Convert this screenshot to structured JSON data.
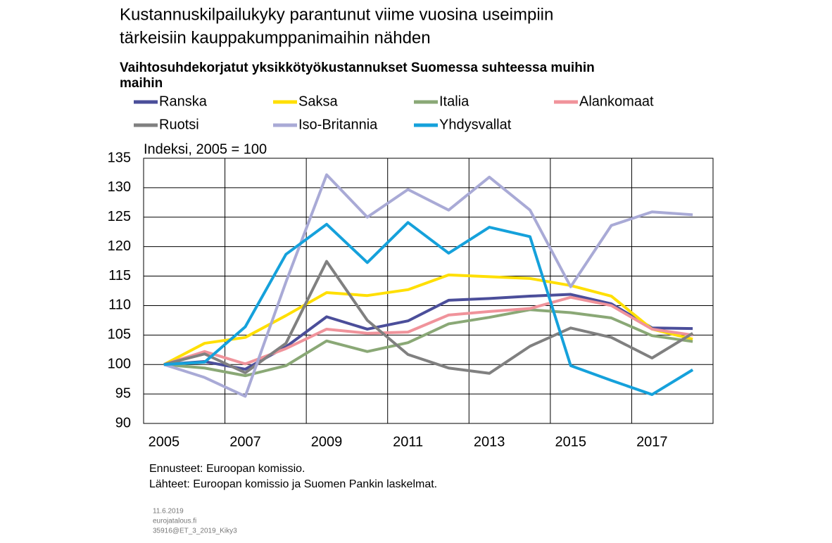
{
  "chart_data": {
    "type": "line",
    "title": [
      "Kustannuskilpailukyky parantunut viime vuosina useimpiin",
      "tärkeisiin kauppakumppanimaihin nähden"
    ],
    "subtitle": [
      "Vaihtosuhdekorjatut yksikkötyökustannukset Suomessa suhteessa muihin",
      "maihin"
    ],
    "y_label": "Indeksi, 2005 = 100",
    "categories": [
      "2005",
      null,
      "2007",
      null,
      "2009",
      null,
      "2011",
      null,
      "2013",
      null,
      "2015",
      null,
      "2017",
      null
    ],
    "ylim": [
      90,
      135
    ],
    "yticks": [
      90,
      95,
      100,
      105,
      110,
      115,
      120,
      125,
      130,
      135
    ],
    "grid": true,
    "series": [
      {
        "name": "Ranska",
        "color": "#4b4e9a",
        "values": [
          100,
          100.5,
          99.2,
          103,
          108.1,
          106,
          107.4,
          110.9,
          111.2,
          111.6,
          111.9,
          110.3,
          106.2,
          106.1
        ]
      },
      {
        "name": "Saksa",
        "color": "#ffdf00",
        "values": [
          100,
          103.6,
          104.6,
          108.3,
          112.2,
          111.7,
          112.7,
          115.2,
          114.9,
          114.6,
          113.4,
          111.6,
          106,
          104.3
        ]
      },
      {
        "name": "Italia",
        "color": "#8aa876",
        "values": [
          100,
          99.4,
          98.1,
          99.8,
          104,
          102.2,
          103.7,
          106.9,
          108,
          109.3,
          108.8,
          107.9,
          104.9,
          103.9
        ]
      },
      {
        "name": "Alankomaat",
        "color": "#f0939b",
        "values": [
          100,
          102.2,
          100.1,
          102.7,
          106,
          105.3,
          105.5,
          108.4,
          109,
          109.5,
          111.4,
          110,
          106,
          105
        ]
      },
      {
        "name": "Ruotsi",
        "color": "#808080",
        "values": [
          100,
          101.8,
          98.6,
          103.6,
          117.5,
          107.5,
          101.7,
          99.4,
          98.5,
          103.1,
          106.2,
          104.6,
          101.1,
          105.3
        ]
      },
      {
        "name": "Iso-Britannia",
        "color": "#a9aad6",
        "values": [
          100,
          97.8,
          94.6,
          114,
          132.2,
          125,
          129.7,
          126.2,
          131.8,
          126.2,
          113.2,
          123.6,
          125.9,
          125.4
        ]
      },
      {
        "name": "Yhdysvallat",
        "color": "#15a1db",
        "values": [
          100,
          100.4,
          106.4,
          118.7,
          123.8,
          117.3,
          124.1,
          118.9,
          123.3,
          121.7,
          99.8,
          97.3,
          94.9,
          99.1
        ]
      }
    ],
    "notes": [
      "Ennusteet: Euroopan komissio.",
      "Lähteet: Euroopan komissio ja Suomen Pankin laskelmat."
    ],
    "footer": [
      "11.6.2019",
      "eurojatalous.fi",
      "35916@ET_3_2019_Kiky3"
    ]
  }
}
